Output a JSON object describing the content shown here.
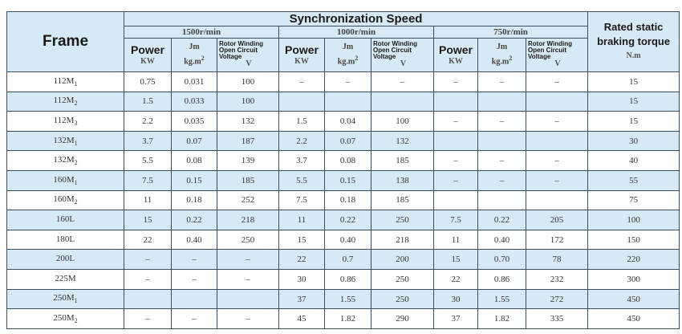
{
  "header": {
    "frame": "Frame",
    "sync": "Synchronization Speed",
    "rated_line1": "Rated static",
    "rated_line2": "braking torque",
    "rated_unit": "N.m",
    "speeds": [
      "1500r/min",
      "1000r/min",
      "750r/min"
    ],
    "power": "Power",
    "power_unit": "KW",
    "jm": "Jm",
    "jm_unit": "kg.m",
    "jm_exp": "2",
    "rw_line1": "Rotor Winding",
    "rw_line2": "Open Circuit",
    "rw_line3": "Voltage",
    "rw_unit": "V"
  },
  "rows": [
    {
      "frame": "112M",
      "sub": "1",
      "c": [
        "0.75",
        "0.031",
        "100",
        "–",
        "–",
        "–",
        "–",
        "–",
        "–",
        "15"
      ]
    },
    {
      "frame": "112M",
      "sub": "2",
      "c": [
        "1.5",
        "0.033",
        "100",
        "",
        "",
        "",
        "",
        "",
        "",
        "15"
      ]
    },
    {
      "frame": "112M",
      "sub": "3",
      "c": [
        "2.2",
        "0.035",
        "132",
        "1.5",
        "0.04",
        "100",
        "–",
        "–",
        "–",
        "15"
      ]
    },
    {
      "frame": "132M",
      "sub": "1",
      "c": [
        "3.7",
        "0.07",
        "187",
        "2.2",
        "0.07",
        "132",
        "",
        "",
        "",
        "30"
      ]
    },
    {
      "frame": "132M",
      "sub": "2",
      "c": [
        "5.5",
        "0.08",
        "139",
        "3.7",
        "0.08",
        "185",
        "–",
        "–",
        "–",
        "40"
      ]
    },
    {
      "frame": "160M",
      "sub": "1",
      "c": [
        "7.5",
        "0.15",
        "185",
        "5.5",
        "0.15",
        "138",
        "–",
        "–",
        "–",
        "55"
      ]
    },
    {
      "frame": "160M",
      "sub": "2",
      "c": [
        "11",
        "0.18",
        "252",
        "7.5",
        "0.18",
        "185",
        "",
        "",
        "",
        "75"
      ]
    },
    {
      "frame": "160L",
      "sub": "",
      "c": [
        "15",
        "0.22",
        "218",
        "11",
        "0.22",
        "250",
        "7.5",
        "0.22",
        "205",
        "100"
      ]
    },
    {
      "frame": "180L",
      "sub": "",
      "c": [
        "22",
        "0.40",
        "250",
        "15",
        "0.40",
        "218",
        "11",
        "0.40",
        "172",
        "150"
      ]
    },
    {
      "frame": "200L",
      "sub": "",
      "c": [
        "–",
        "–",
        "–",
        "22",
        "0.7",
        "200",
        "15",
        "0.70",
        "78",
        "220"
      ]
    },
    {
      "frame": "225M",
      "sub": "",
      "c": [
        "–",
        "–",
        "–",
        "30",
        "0.86",
        "250",
        "22",
        "0.86",
        "232",
        "300"
      ]
    },
    {
      "frame": "250M",
      "sub": "1",
      "c": [
        "",
        "",
        "",
        "37",
        "1.55",
        "250",
        "30",
        "1.55",
        "272",
        "450"
      ]
    },
    {
      "frame": "250M",
      "sub": "2",
      "c": [
        "–",
        "–",
        "–",
        "45",
        "1.82",
        "290",
        "37",
        "1.82",
        "335",
        "450"
      ]
    }
  ]
}
